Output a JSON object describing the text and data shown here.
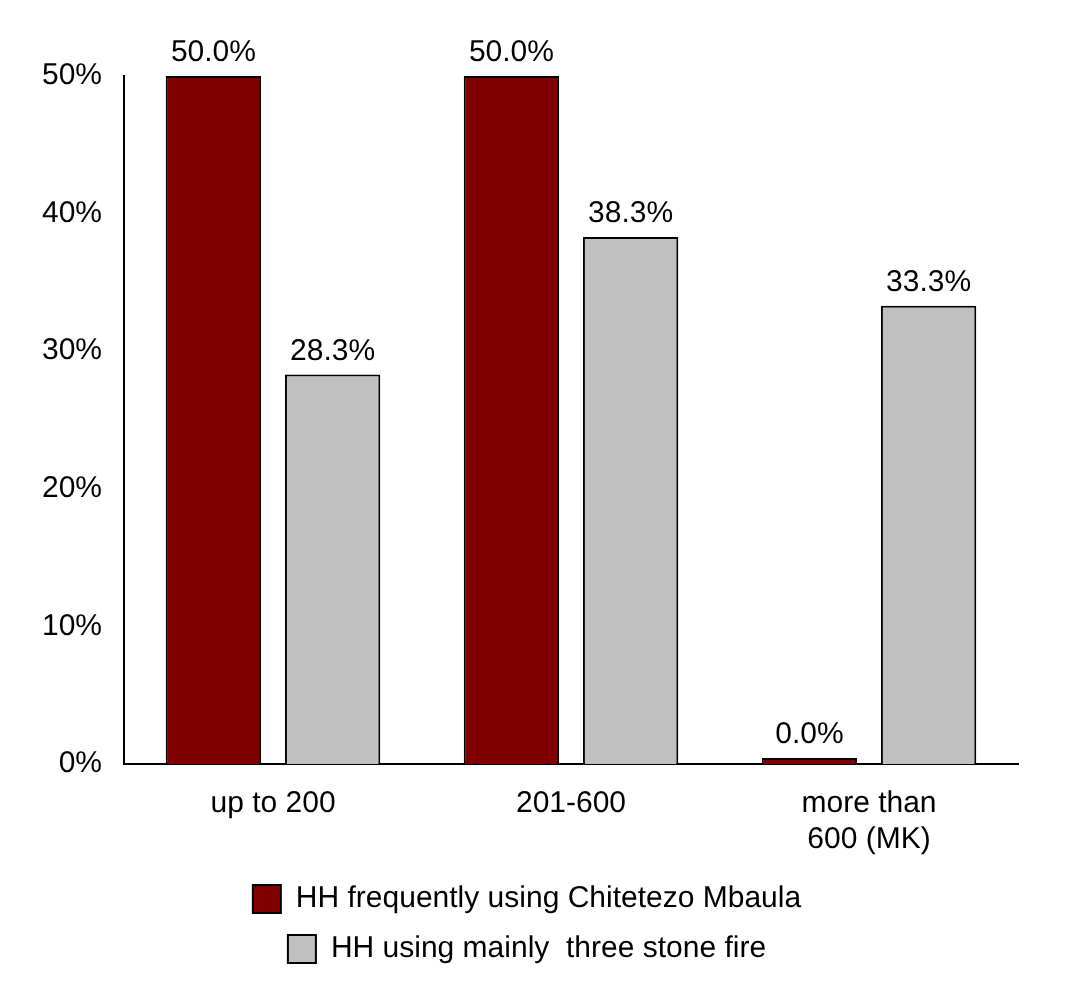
{
  "chart_data": {
    "type": "bar",
    "categories": [
      "up to 200",
      "201-600",
      "more than 600 (MK)"
    ],
    "series": [
      {
        "name": "HH frequently using Chitetezo Mbaula",
        "color": "#800000",
        "values": [
          50.0,
          50.0,
          0.0
        ],
        "value_labels": [
          "50.0%",
          "50.0%",
          "0.0%"
        ]
      },
      {
        "name": "HH using mainly  three stone fire",
        "color": "#c0c0c0",
        "values": [
          28.3,
          38.3,
          33.3
        ],
        "value_labels": [
          "28.3%",
          "38.3%",
          "33.3%"
        ]
      }
    ],
    "ylim": [
      0,
      50
    ],
    "yticks": [
      {
        "value": 0,
        "label": "0%"
      },
      {
        "value": 10,
        "label": "10%"
      },
      {
        "value": 20,
        "label": "20%"
      },
      {
        "value": 30,
        "label": "30%"
      },
      {
        "value": 40,
        "label": "40%"
      },
      {
        "value": 50,
        "label": "50%"
      }
    ],
    "grid": false,
    "legend": "bottom"
  }
}
